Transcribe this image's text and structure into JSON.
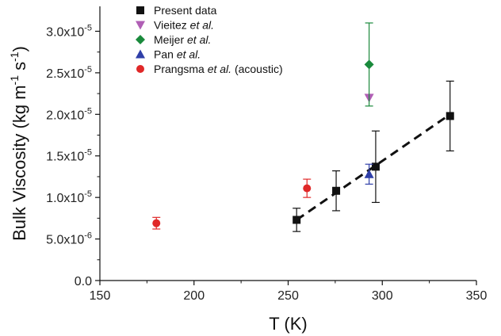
{
  "chart_data": {
    "type": "scatter",
    "xlabel": "T (K)",
    "ylabel_main": "Bulk Viscosity (kg m",
    "ylabel_sup1": "-1",
    "ylabel_mid": " s",
    "ylabel_sup2": "-1",
    "ylabel_end": ")",
    "xlim": [
      150,
      350
    ],
    "ylim": [
      0,
      3.3e-05
    ],
    "x_ticks": [
      {
        "value": 150,
        "label": "150"
      },
      {
        "value": 200,
        "label": "200"
      },
      {
        "value": 250,
        "label": "250"
      },
      {
        "value": 300,
        "label": "300"
      },
      {
        "value": 350,
        "label": "350"
      }
    ],
    "y_ticks": [
      {
        "value": 0,
        "mantissa": "0.0",
        "exp": ""
      },
      {
        "value": 5e-06,
        "mantissa": "5.0x10",
        "exp": "-6"
      },
      {
        "value": 1e-05,
        "mantissa": "1.0x10",
        "exp": "-5"
      },
      {
        "value": 1.5e-05,
        "mantissa": "1.5x10",
        "exp": "-5"
      },
      {
        "value": 2e-05,
        "mantissa": "2.0x10",
        "exp": "-5"
      },
      {
        "value": 2.5e-05,
        "mantissa": "2.5x10",
        "exp": "-5"
      },
      {
        "value": 3e-05,
        "mantissa": "3.0x10",
        "exp": "-5"
      }
    ],
    "legend_position": "top-left",
    "series": [
      {
        "name": "Present data",
        "name_parts": [
          {
            "text": "Present data",
            "italic": false
          }
        ],
        "marker": "square",
        "color": "#111111",
        "points": [
          {
            "x": 254.5,
            "y": 7.3e-06,
            "err": 1.4e-06
          },
          {
            "x": 275.5,
            "y": 1.08e-05,
            "err": 2.4e-06
          },
          {
            "x": 296.5,
            "y": 1.37e-05,
            "err": 4.3e-06
          },
          {
            "x": 336.0,
            "y": 1.98e-05,
            "err": 4.2e-06
          }
        ]
      },
      {
        "name": "Vieitez et al.",
        "name_parts": [
          {
            "text": "Vieitez ",
            "italic": false
          },
          {
            "text": "et al.",
            "italic": true
          }
        ],
        "marker": "triangle-down",
        "color": "#b05fb5",
        "points": [
          {
            "x": 293,
            "y": 2.2e-05,
            "err": 0
          }
        ]
      },
      {
        "name": "Meijer et al.",
        "name_parts": [
          {
            "text": "Meijer ",
            "italic": false
          },
          {
            "text": "et al.",
            "italic": true
          }
        ],
        "marker": "diamond",
        "color": "#1a8a3c",
        "points": [
          {
            "x": 293,
            "y": 2.6e-05,
            "err_low": 5e-06,
            "err_high": 5e-06
          }
        ]
      },
      {
        "name": "Pan et al.",
        "name_parts": [
          {
            "text": "Pan ",
            "italic": false
          },
          {
            "text": "et al.",
            "italic": true
          }
        ],
        "marker": "triangle-up",
        "color": "#2f3fa8",
        "points": [
          {
            "x": 293,
            "y": 1.28e-05,
            "err": 1.2e-06
          }
        ]
      },
      {
        "name": "Prangsma et al. (acoustic)",
        "name_parts": [
          {
            "text": "Prangsma ",
            "italic": false
          },
          {
            "text": "et al.",
            "italic": true
          },
          {
            "text": " (acoustic)",
            "italic": false
          }
        ],
        "marker": "circle",
        "color": "#e02828",
        "points": [
          {
            "x": 180,
            "y": 6.9e-06,
            "err": 7e-07
          },
          {
            "x": 260,
            "y": 1.11e-05,
            "err": 1.1e-06
          }
        ]
      }
    ],
    "fit_line": {
      "style": "dashed",
      "color": "#111111",
      "x": [
        254.5,
        336.0
      ],
      "y": [
        7.3e-06,
        2e-05
      ]
    }
  }
}
